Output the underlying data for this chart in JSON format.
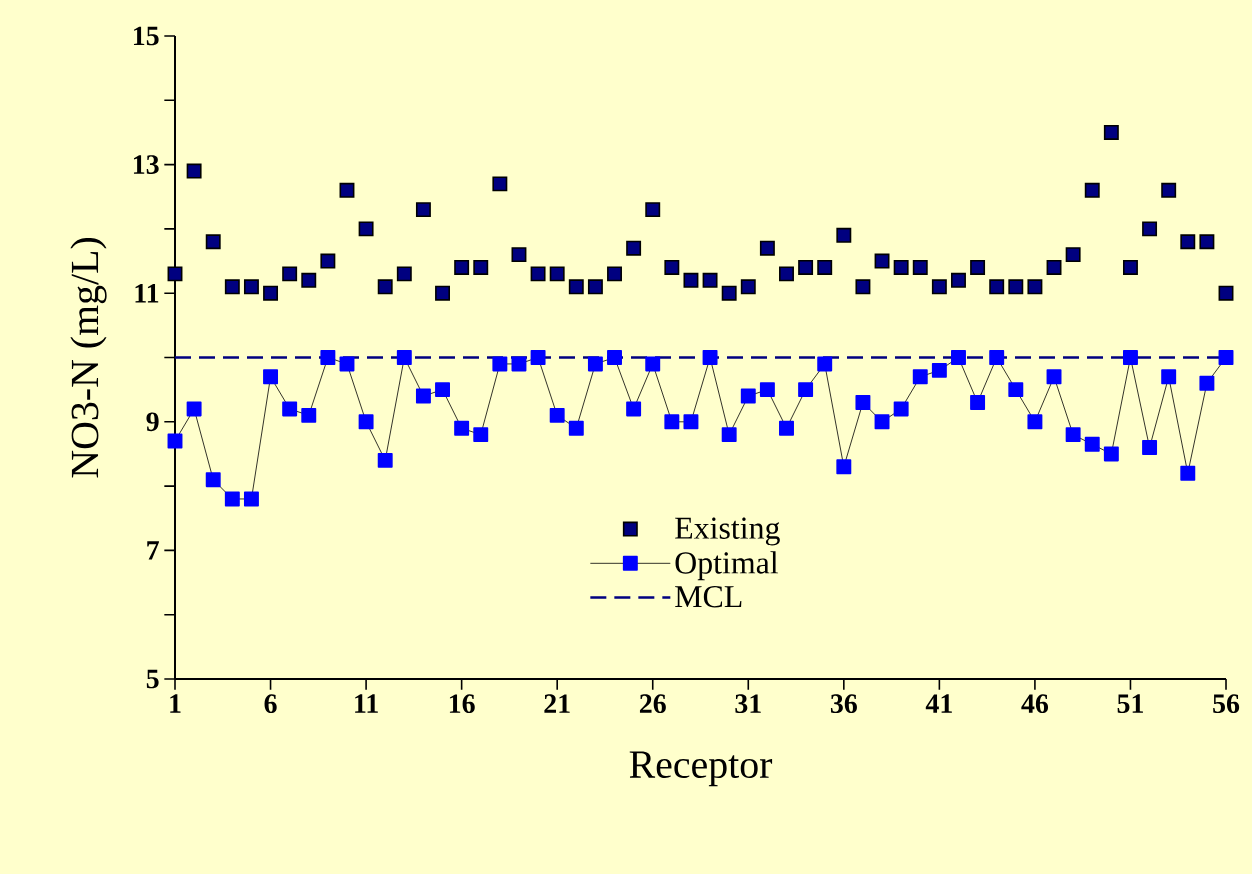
{
  "chart_data": {
    "type": "line",
    "xlabel": "Receptor",
    "ylabel": "NO3-N (mg/L)",
    "x": [
      1,
      2,
      3,
      4,
      5,
      6,
      7,
      8,
      9,
      10,
      11,
      12,
      13,
      14,
      15,
      16,
      17,
      18,
      19,
      20,
      21,
      22,
      23,
      24,
      25,
      26,
      27,
      28,
      29,
      30,
      31,
      32,
      33,
      34,
      35,
      36,
      37,
      38,
      39,
      40,
      41,
      42,
      43,
      44,
      45,
      46,
      47,
      48,
      49,
      50,
      51,
      52,
      53,
      54,
      55,
      56
    ],
    "series": [
      {
        "name": "Existing",
        "type": "scatter",
        "color": "#000080",
        "values": [
          11.3,
          12.9,
          11.8,
          11.1,
          11.1,
          11.0,
          11.3,
          11.2,
          11.5,
          12.6,
          12.0,
          11.1,
          11.3,
          12.3,
          11.0,
          11.4,
          11.4,
          12.7,
          11.6,
          11.3,
          11.3,
          11.1,
          11.1,
          11.3,
          11.7,
          12.3,
          11.4,
          11.2,
          11.2,
          11.0,
          11.1,
          11.7,
          11.3,
          11.4,
          11.4,
          11.9,
          11.1,
          11.5,
          11.4,
          11.4,
          11.1,
          11.2,
          11.4,
          11.1,
          11.1,
          11.1,
          11.4,
          11.6,
          12.6,
          13.5,
          11.4,
          12.0,
          12.6,
          11.8,
          11.8,
          11.0
        ]
      },
      {
        "name": "Optimal",
        "color": "#0000ff",
        "values": [
          8.7,
          9.2,
          8.1,
          7.8,
          7.8,
          9.7,
          9.2,
          9.1,
          10.0,
          9.9,
          9.0,
          8.4,
          10.0,
          9.4,
          9.5,
          8.9,
          8.8,
          9.9,
          9.9,
          10.0,
          9.1,
          8.9,
          9.9,
          10.0,
          9.2,
          9.9,
          9.0,
          9.0,
          10.0,
          8.8,
          9.4,
          9.5,
          8.9,
          9.5,
          9.9,
          8.3,
          9.3,
          9.0,
          9.2,
          9.7,
          9.8,
          10.0,
          9.3,
          10.0,
          9.5,
          9.0,
          9.7,
          8.8,
          8.65,
          8.5,
          10.0,
          8.6,
          9.7,
          8.2,
          9.6,
          10.0
        ]
      }
    ],
    "ref_lines": [
      {
        "axis": "y",
        "value": 10,
        "label": "MCL",
        "color": "#000080",
        "line_style": "dashed"
      }
    ],
    "xlim": [
      1,
      56
    ],
    "xticks": [
      1,
      6,
      11,
      16,
      21,
      26,
      31,
      36,
      41,
      46,
      51,
      56
    ],
    "ylim": [
      5,
      15
    ],
    "yticks": [
      5,
      {
        "value": 6,
        "label": null
      },
      7,
      {
        "value": 8,
        "label": null
      },
      9,
      {
        "value": 10,
        "label": null
      },
      11,
      {
        "value": 12,
        "label": null
      },
      13,
      {
        "value": 14,
        "label": null
      },
      15
    ],
    "marker": "square",
    "legend": "bottom",
    "grid": false
  }
}
